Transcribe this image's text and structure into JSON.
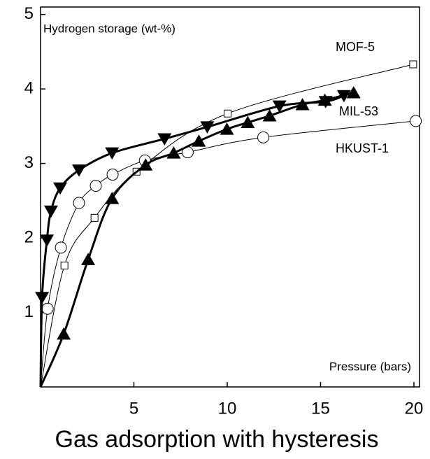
{
  "chart_data": {
    "type": "line",
    "title": "Gas adsorption with hysteresis",
    "y_label": "Hydrogen storage (wt-%)",
    "x_label": "Pressure (bars)",
    "xlim": [
      0,
      20.3
    ],
    "ylim": [
      0,
      5.1
    ],
    "xticks": [
      5,
      10,
      15,
      20
    ],
    "yticks": [
      1,
      2,
      3,
      4,
      5
    ],
    "series": [
      {
        "name": "MOF-5",
        "marker": "square",
        "thick": false,
        "color": "#000000",
        "x": [
          0,
          1.28,
          2.89,
          5.14,
          10.02,
          19.96
        ],
        "values": [
          0,
          1.63,
          2.27,
          2.89,
          3.67,
          4.33
        ]
      },
      {
        "name": "HKUST-1",
        "marker": "circle",
        "thick": false,
        "color": "#000000",
        "x": [
          0,
          0.38,
          1.09,
          2.06,
          2.96,
          3.86,
          5.59,
          7.88,
          11.93,
          20.1
        ],
        "values": [
          0,
          1.05,
          1.87,
          2.47,
          2.7,
          2.85,
          3.04,
          3.15,
          3.35,
          3.57
        ]
      },
      {
        "name": "MIL-53",
        "marker": "triangle-up",
        "thick": true,
        "color": "#000000",
        "x": [
          0,
          1.24,
          2.55,
          3.83,
          5.63,
          7.13,
          8.48,
          9.98,
          11.1,
          12.27,
          14.03,
          15.23,
          16.77
        ],
        "values": [
          0,
          0.71,
          1.71,
          2.53,
          2.98,
          3.14,
          3.3,
          3.46,
          3.55,
          3.64,
          3.79,
          3.85,
          3.95
        ]
      },
      {
        "marker": "triangle-down",
        "thick": true,
        "color": "#000000",
        "x": [
          0,
          0.08,
          0.34,
          0.56,
          1.05,
          2.06,
          3.83,
          6.64,
          8.93,
          12.8,
          15.27,
          16.25
        ],
        "values": [
          0,
          1.2,
          1.97,
          2.36,
          2.67,
          2.91,
          3.14,
          3.33,
          3.49,
          3.77,
          3.83,
          3.91
        ]
      }
    ]
  }
}
